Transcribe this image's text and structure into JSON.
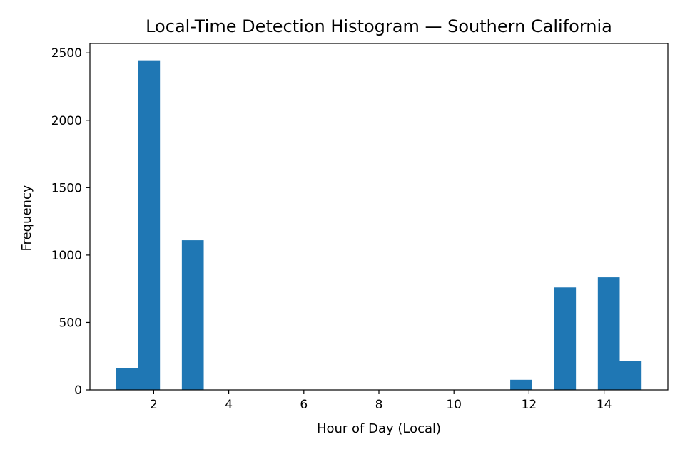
{
  "chart_data": {
    "type": "bar",
    "title": "Local-Time Detection Histogram — Southern California",
    "xlabel": "Hour of Day (Local)",
    "ylabel": "Frequency",
    "xlim": [
      0.3,
      15.7
    ],
    "ylim": [
      0,
      2570
    ],
    "xticks": [
      2,
      4,
      6,
      8,
      10,
      12,
      14
    ],
    "yticks": [
      0,
      500,
      1000,
      1500,
      2000,
      2500
    ],
    "grid": false,
    "bin_width": 0.5833,
    "bins": [
      {
        "left": 1.0,
        "value": 160
      },
      {
        "left": 1.5833,
        "value": 2445
      },
      {
        "left": 2.75,
        "value": 1110
      },
      {
        "left": 11.5,
        "value": 75
      },
      {
        "left": 12.6667,
        "value": 760
      },
      {
        "left": 13.8333,
        "value": 835
      },
      {
        "left": 14.4167,
        "value": 215
      }
    ],
    "bar_color": "#1f77b4"
  }
}
